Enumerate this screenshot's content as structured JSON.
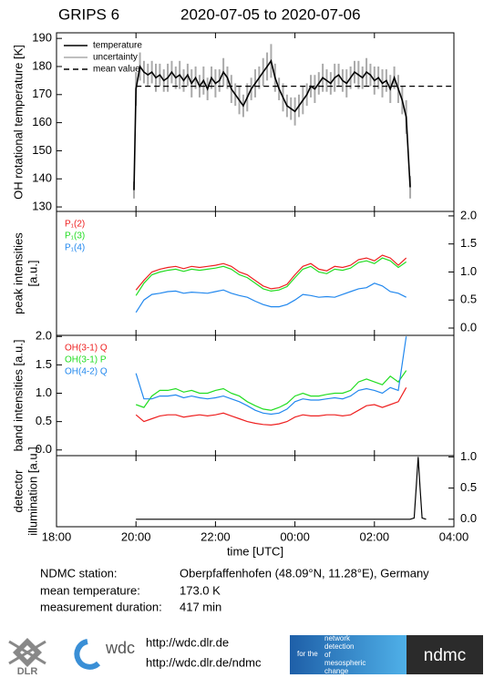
{
  "title": "GRIPS 6",
  "date_range": "2020-07-05 to 2020-07-06",
  "chart_data": [
    {
      "type": "line",
      "ylabel": [
        "OH rotational temperature [K]"
      ],
      "ylim": [
        128.4,
        192
      ],
      "yticks": [
        130,
        140,
        150,
        160,
        170,
        180,
        190
      ],
      "yaxis": "left",
      "legend": "lines",
      "x": [
        19.95,
        20.0,
        20.1,
        20.2,
        20.3,
        20.4,
        20.5,
        20.6,
        20.7,
        20.8,
        20.9,
        21.0,
        21.1,
        21.2,
        21.3,
        21.4,
        21.5,
        21.6,
        21.7,
        21.8,
        21.9,
        22.0,
        22.1,
        22.2,
        22.3,
        22.4,
        22.5,
        22.6,
        22.7,
        22.8,
        22.9,
        23.0,
        23.1,
        23.2,
        23.3,
        23.4,
        23.5,
        23.6,
        23.7,
        23.8,
        23.9,
        24.0,
        24.1,
        24.2,
        24.3,
        24.4,
        24.5,
        24.6,
        24.7,
        24.8,
        24.9,
        25.0,
        25.1,
        25.2,
        25.3,
        25.4,
        25.5,
        25.6,
        25.7,
        25.8,
        25.9,
        26.0,
        26.1,
        26.2,
        26.3,
        26.4,
        26.5,
        26.6,
        26.7,
        26.8,
        26.9
      ],
      "series": [
        {
          "name": "temperature",
          "color": "#000000",
          "values": [
            136,
            172,
            180,
            178,
            177,
            178,
            176,
            177,
            175,
            176,
            178,
            176,
            177,
            175,
            177,
            174,
            176,
            173,
            175,
            172,
            176,
            174,
            175,
            178,
            176,
            172,
            170,
            168,
            166,
            169,
            172,
            174,
            176,
            178,
            180,
            182,
            176,
            172,
            169,
            166,
            165,
            164,
            166,
            168,
            170,
            173,
            172,
            174,
            176,
            175,
            174,
            176,
            177,
            175,
            174,
            176,
            178,
            177,
            176,
            178,
            177,
            175,
            176,
            174,
            175,
            172,
            176,
            172,
            168,
            162,
            137
          ],
          "error_name": "uncertainty",
          "error_color": "#aaaaaa",
          "errors": [
            3,
            6,
            5,
            4,
            4,
            4,
            5,
            4,
            4,
            5,
            4,
            4,
            5,
            4,
            4,
            5,
            4,
            4,
            5,
            4,
            4,
            5,
            4,
            5,
            4,
            5,
            4,
            5,
            4,
            5,
            4,
            5,
            4,
            5,
            5,
            6,
            5,
            4,
            5,
            4,
            4,
            5,
            4,
            5,
            4,
            4,
            5,
            4,
            5,
            4,
            4,
            5,
            4,
            4,
            5,
            4,
            4,
            5,
            4,
            5,
            4,
            5,
            4,
            5,
            4,
            5,
            4,
            5,
            5,
            6,
            4
          ]
        },
        {
          "name": "mean value",
          "color": "#000000",
          "dash": true,
          "x": [
            20.0,
            28.0
          ],
          "values": [
            173,
            173
          ]
        }
      ]
    },
    {
      "type": "line",
      "ylabel": [
        "peak intensities",
        "[a.u.]"
      ],
      "ylim": [
        -0.13,
        2.08
      ],
      "yticks": [
        {
          "value": 0,
          "label": "0.0"
        },
        0.5,
        {
          "value": 1,
          "label": "1.0"
        },
        1.5,
        {
          "value": 2,
          "label": "2.0"
        }
      ],
      "yaxis": "right",
      "legend": "colored-text",
      "x": [
        20.0,
        20.2,
        20.4,
        20.6,
        20.8,
        21.0,
        21.2,
        21.4,
        21.6,
        21.8,
        22.0,
        22.2,
        22.4,
        22.6,
        22.8,
        23.0,
        23.2,
        23.4,
        23.6,
        23.8,
        24.0,
        24.2,
        24.4,
        24.6,
        24.8,
        25.0,
        25.2,
        25.4,
        25.6,
        25.8,
        26.0,
        26.2,
        26.4,
        26.6,
        26.8
      ],
      "series": [
        {
          "name": "P₁(2)",
          "color": "#ee2020",
          "values": [
            0.68,
            0.85,
            1.0,
            1.05,
            1.08,
            1.1,
            1.06,
            1.1,
            1.08,
            1.1,
            1.12,
            1.15,
            1.1,
            1.0,
            0.95,
            0.85,
            0.75,
            0.7,
            0.72,
            0.78,
            0.95,
            1.1,
            1.15,
            1.05,
            1.02,
            1.1,
            1.08,
            1.12,
            1.22,
            1.25,
            1.2,
            1.3,
            1.25,
            1.12,
            1.25
          ]
        },
        {
          "name": "P₁(3)",
          "color": "#22dd22",
          "values": [
            0.58,
            0.8,
            0.95,
            1.0,
            1.03,
            1.05,
            1.01,
            1.05,
            1.03,
            1.05,
            1.07,
            1.1,
            1.05,
            0.95,
            0.9,
            0.8,
            0.7,
            0.66,
            0.68,
            0.74,
            0.9,
            1.05,
            1.1,
            1.0,
            0.97,
            1.05,
            1.03,
            1.07,
            1.17,
            1.2,
            1.15,
            1.25,
            1.2,
            1.08,
            1.18
          ]
        },
        {
          "name": "P₁(4)",
          "color": "#2288ee",
          "values": [
            0.28,
            0.5,
            0.6,
            0.62,
            0.65,
            0.66,
            0.62,
            0.64,
            0.63,
            0.62,
            0.65,
            0.68,
            0.62,
            0.58,
            0.55,
            0.48,
            0.42,
            0.38,
            0.38,
            0.42,
            0.5,
            0.6,
            0.58,
            0.55,
            0.56,
            0.55,
            0.6,
            0.65,
            0.7,
            0.72,
            0.8,
            0.75,
            0.65,
            0.62,
            0.55
          ]
        }
      ]
    },
    {
      "type": "line",
      "ylabel": [
        "band intensities [a.u.]"
      ],
      "ylim": [
        -0.1,
        2.02
      ],
      "yticks": [
        {
          "value": 0,
          "label": "0.0"
        },
        0.5,
        {
          "value": 1,
          "label": "1.0"
        },
        1.5,
        {
          "value": 2,
          "label": "2.0"
        }
      ],
      "yaxis": "left",
      "legend": "colored-text",
      "x": [
        20.0,
        20.2,
        20.4,
        20.6,
        20.8,
        21.0,
        21.2,
        21.4,
        21.6,
        21.8,
        22.0,
        22.2,
        22.4,
        22.6,
        22.8,
        23.0,
        23.2,
        23.4,
        23.6,
        23.8,
        24.0,
        24.2,
        24.4,
        24.6,
        24.8,
        25.0,
        25.2,
        25.4,
        25.6,
        25.8,
        26.0,
        26.2,
        26.4,
        26.6,
        26.8
      ],
      "series": [
        {
          "name": "OH(3-1) Q",
          "color": "#ee2020",
          "values": [
            0.62,
            0.5,
            0.55,
            0.6,
            0.62,
            0.62,
            0.58,
            0.6,
            0.62,
            0.6,
            0.62,
            0.65,
            0.6,
            0.55,
            0.5,
            0.47,
            0.45,
            0.44,
            0.46,
            0.5,
            0.58,
            0.62,
            0.6,
            0.6,
            0.62,
            0.62,
            0.6,
            0.62,
            0.7,
            0.78,
            0.8,
            0.75,
            0.8,
            0.85,
            1.1
          ]
        },
        {
          "name": "OH(3-1) P",
          "color": "#22dd22",
          "values": [
            0.8,
            0.75,
            0.95,
            1.05,
            1.05,
            1.08,
            1.02,
            1.05,
            1.0,
            1.0,
            1.05,
            1.08,
            1.0,
            0.95,
            0.85,
            0.78,
            0.72,
            0.7,
            0.75,
            0.82,
            0.95,
            1.0,
            0.95,
            0.95,
            0.98,
            1.0,
            1.0,
            1.05,
            1.2,
            1.25,
            1.2,
            1.15,
            1.3,
            1.2,
            1.4
          ]
        },
        {
          "name": "OH(4-2) Q",
          "color": "#2288ee",
          "values": [
            1.35,
            0.9,
            0.9,
            0.95,
            0.95,
            0.97,
            0.92,
            0.95,
            0.92,
            0.9,
            0.92,
            0.95,
            0.9,
            0.85,
            0.78,
            0.7,
            0.65,
            0.63,
            0.65,
            0.72,
            0.85,
            0.9,
            0.88,
            0.88,
            0.9,
            0.92,
            0.9,
            0.95,
            1.05,
            1.08,
            1.05,
            1.0,
            1.1,
            1.05,
            2.0
          ]
        }
      ]
    },
    {
      "type": "line",
      "ylabel": [
        "detector",
        "illumination [a.u.]"
      ],
      "ylim": [
        -0.12,
        1.02
      ],
      "yticks": [
        {
          "value": 0,
          "label": "0.0"
        },
        0.5,
        {
          "value": 1,
          "label": "1.0"
        }
      ],
      "yaxis": "right",
      "xlabel": "time [UTC]",
      "xlim": [
        18,
        28
      ],
      "xticks": [
        {
          "value": 18,
          "label": "18:00"
        },
        {
          "value": 20,
          "label": "20:00"
        },
        {
          "value": 22,
          "label": "22:00"
        },
        {
          "value": 24,
          "label": "00:00"
        },
        {
          "value": 26,
          "label": "02:00"
        },
        {
          "value": 28,
          "label": "04:00"
        }
      ],
      "x": [
        20.0,
        26.9,
        27.0,
        27.05,
        27.1,
        27.15,
        27.2,
        27.3
      ],
      "series": [
        {
          "color": "#000000",
          "values": [
            0,
            0,
            0.02,
            0.5,
            1.0,
            0.5,
            0.02,
            0
          ]
        }
      ]
    }
  ],
  "footer": {
    "rows": [
      [
        "NDMC station:",
        "Oberpfaffenhofen (48.09°N, 11.28°E), Germany"
      ],
      [
        "mean temperature:",
        "173.0 K"
      ],
      [
        "measurement duration:",
        "417 min"
      ]
    ],
    "logos": {
      "dlr": "DLR",
      "wdc": "wdc",
      "urls": [
        "http://wdc.dlr.de",
        "http://wdc.dlr.de/ndmc"
      ],
      "ndmc_tagline": [
        "for the",
        "network",
        "detection",
        "of",
        "mesospheric",
        "change"
      ],
      "ndmc": "ndmc"
    }
  }
}
